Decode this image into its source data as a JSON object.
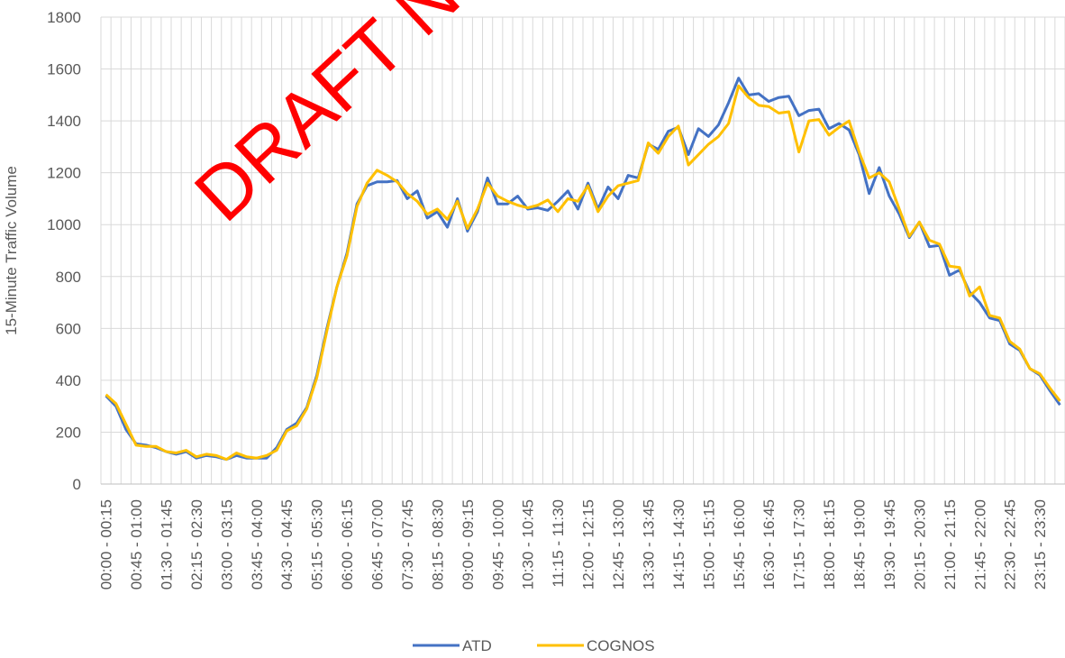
{
  "chart_data": {
    "type": "line",
    "y_label": "15-Minute Traffic Volume",
    "annotation": "DRAFT NO",
    "categories": [
      "00:00 - 00:15",
      null,
      null,
      "00:45 - 01:00",
      null,
      null,
      "01:30 - 01:45",
      null,
      null,
      "02:15 - 02:30",
      null,
      null,
      "03:00 - 03:15",
      null,
      null,
      "03:45 - 04:00",
      null,
      null,
      "04:30 - 04:45",
      null,
      null,
      "05:15 - 05:30",
      null,
      null,
      "06:00 - 06:15",
      null,
      null,
      "06:45 - 07:00",
      null,
      null,
      "07:30 - 07:45",
      null,
      null,
      "08:15 - 08:30",
      null,
      null,
      "09:00 - 09:15",
      null,
      null,
      "09:45 - 10:00",
      null,
      null,
      "10:30 - 10:45",
      null,
      null,
      "11:15 - 11:30",
      null,
      null,
      "12:00 - 12:15",
      null,
      null,
      "12:45 - 13:00",
      null,
      null,
      "13:30 - 13:45",
      null,
      null,
      "14:15 - 14:30",
      null,
      null,
      "15:00 - 15:15",
      null,
      null,
      "15:45 - 16:00",
      null,
      null,
      "16:30 - 16:45",
      null,
      null,
      "17:15 - 17:30",
      null,
      null,
      "18:00 - 18:15",
      null,
      null,
      "18:45 - 19:00",
      null,
      null,
      "19:30 - 19:45",
      null,
      null,
      "20:15 - 20:30",
      null,
      null,
      "21:00 - 21:15",
      null,
      null,
      "21:45 - 22:00",
      null,
      null,
      "22:30 - 22:45",
      null,
      null,
      "23:15 - 23:30",
      null,
      null
    ],
    "series": [
      {
        "name": "ATD",
        "color": "#4472c4",
        "values": [
          340,
          300,
          210,
          155,
          150,
          140,
          125,
          115,
          125,
          100,
          110,
          105,
          95,
          110,
          100,
          100,
          100,
          140,
          210,
          235,
          295,
          420,
          600,
          760,
          890,
          1080,
          1150,
          1165,
          1165,
          1170,
          1100,
          1130,
          1025,
          1050,
          990,
          1100,
          975,
          1050,
          1180,
          1080,
          1080,
          1110,
          1060,
          1065,
          1055,
          1090,
          1130,
          1060,
          1160,
          1060,
          1145,
          1100,
          1190,
          1180,
          1310,
          1290,
          1360,
          1375,
          1270,
          1370,
          1340,
          1385,
          1470,
          1565,
          1500,
          1505,
          1475,
          1490,
          1495,
          1420,
          1440,
          1445,
          1370,
          1390,
          1365,
          1270,
          1120,
          1220,
          1110,
          1040,
          950,
          1010,
          915,
          920,
          805,
          825,
          740,
          700,
          640,
          630,
          540,
          515,
          445,
          420,
          360,
          305
        ]
      },
      {
        "name": "COGNOS",
        "color": "#ffc000",
        "values": [
          345,
          310,
          230,
          150,
          145,
          145,
          125,
          120,
          130,
          105,
          115,
          110,
          95,
          120,
          105,
          100,
          110,
          130,
          205,
          225,
          290,
          410,
          590,
          760,
          880,
          1070,
          1160,
          1210,
          1190,
          1165,
          1120,
          1090,
          1040,
          1060,
          1020,
          1090,
          985,
          1060,
          1160,
          1110,
          1090,
          1075,
          1065,
          1075,
          1095,
          1050,
          1100,
          1090,
          1150,
          1050,
          1110,
          1150,
          1160,
          1170,
          1315,
          1275,
          1340,
          1380,
          1230,
          1270,
          1310,
          1340,
          1390,
          1535,
          1490,
          1460,
          1455,
          1430,
          1435,
          1280,
          1400,
          1405,
          1345,
          1375,
          1400,
          1280,
          1180,
          1200,
          1165,
          1060,
          955,
          1010,
          940,
          925,
          840,
          835,
          725,
          760,
          650,
          640,
          550,
          520,
          445,
          425,
          370,
          320
        ]
      }
    ],
    "ylim": [
      0,
      1800
    ],
    "yticks": [
      0,
      200,
      400,
      600,
      800,
      1000,
      1200,
      1400,
      1600,
      1800
    ],
    "grid": true,
    "legend": "bottom"
  }
}
